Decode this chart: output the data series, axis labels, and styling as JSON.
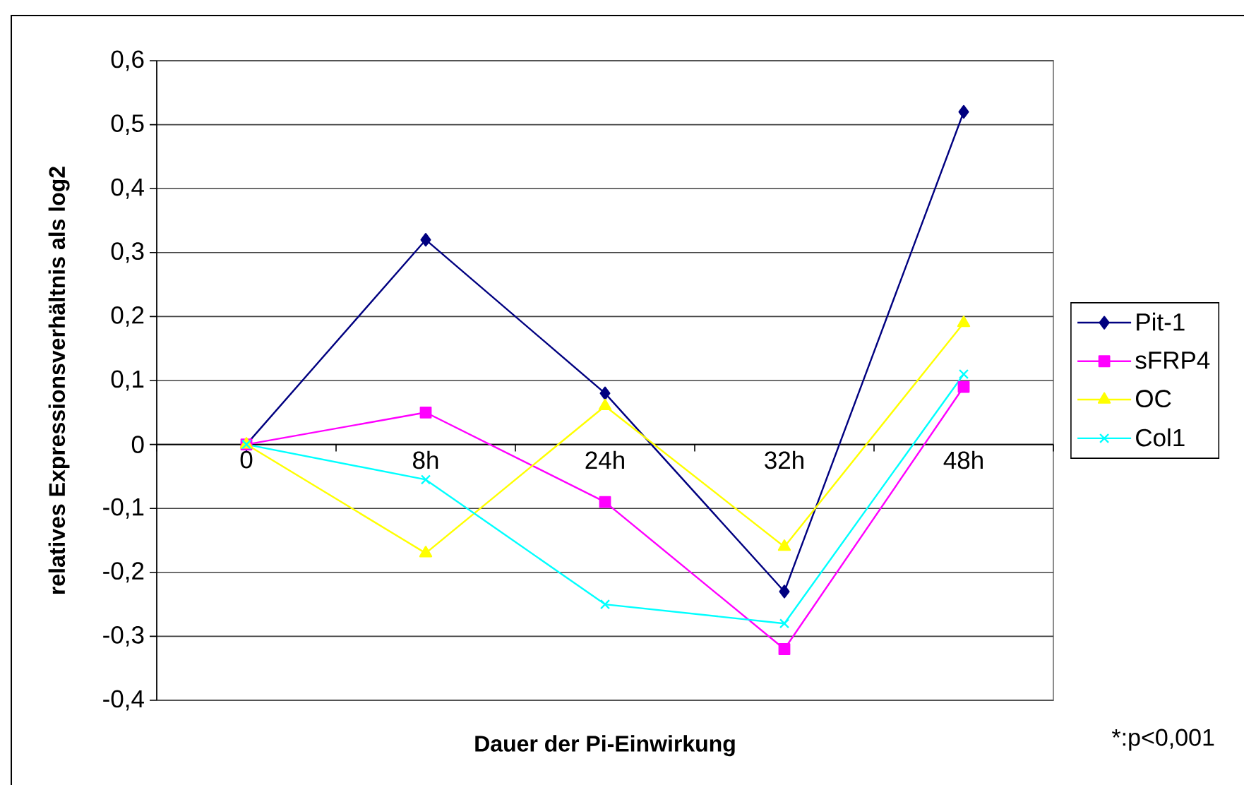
{
  "chart_data": {
    "type": "line",
    "xlabel": "Dauer der Pi-Einwirkung",
    "ylabel": "relatives Expressionsverhältnis als log2",
    "categories": [
      "0",
      "8h",
      "24h",
      "32h",
      "48h"
    ],
    "series": [
      {
        "name": "Pit-1",
        "color": "#000080",
        "marker": "diamond",
        "values": [
          0,
          0.32,
          0.08,
          -0.23,
          0.52
        ]
      },
      {
        "name": "sFRP4",
        "color": "#ff00ff",
        "marker": "square",
        "values": [
          0,
          0.05,
          -0.09,
          -0.32,
          0.09
        ]
      },
      {
        "name": "OC",
        "color": "#ffff00",
        "marker": "triangle",
        "values": [
          0,
          -0.17,
          0.06,
          -0.16,
          0.19
        ]
      },
      {
        "name": "Col1",
        "color": "#00ffff",
        "marker": "cross",
        "values": [
          0,
          -0.055,
          -0.25,
          -0.28,
          0.11
        ]
      }
    ],
    "ylim": [
      -0.4,
      0.6
    ],
    "yticks": [
      {
        "value": -0.4,
        "label": "-0,4"
      },
      {
        "value": -0.3,
        "label": "-0,3"
      },
      {
        "value": -0.2,
        "label": "-0,2"
      },
      {
        "value": -0.1,
        "label": "-0,1"
      },
      0,
      {
        "value": 0.1,
        "label": "0,1"
      },
      {
        "value": 0.2,
        "label": "0,2"
      },
      {
        "value": 0.3,
        "label": "0,3"
      },
      {
        "value": 0.4,
        "label": "0,4"
      },
      {
        "value": 0.5,
        "label": "0,5"
      },
      {
        "value": 0.6,
        "label": "0,6"
      }
    ],
    "grid": "y",
    "legend": "right",
    "annotations": [
      "*:p<0,001"
    ]
  }
}
